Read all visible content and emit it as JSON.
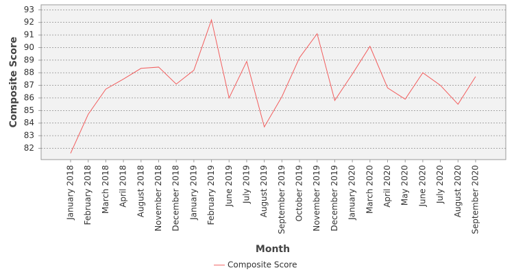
{
  "chart_data": {
    "type": "line",
    "x_label": "Month",
    "y_label": "Composite Score",
    "categories": [
      "January 2018",
      "February 2018",
      "March 2018",
      "April 2018",
      "August 2018",
      "November 2018",
      "December 2018",
      "January 2019",
      "February 2019",
      "June 2019",
      "July 2019",
      "August 2019",
      "September 2019",
      "October 2019",
      "November 2019",
      "December 2019",
      "January 2020",
      "March 2020",
      "April 2020",
      "May 2020",
      "June 2020",
      "July 2020",
      "August 2020",
      "September 2020"
    ],
    "series": [
      {
        "name": "Composite Score",
        "color": "#f25c5c",
        "values": [
          81.6,
          84.7,
          86.7,
          87.5,
          88.35,
          88.45,
          87.1,
          88.2,
          92.2,
          86.0,
          88.9,
          83.7,
          86.1,
          89.2,
          91.1,
          85.8,
          87.9,
          90.1,
          86.8,
          85.9,
          88.0,
          87.0,
          85.5,
          87.7
        ]
      }
    ],
    "ylim": [
      81.1,
      93.4
    ],
    "yticks": [
      82,
      83,
      84,
      85,
      86,
      87,
      88,
      89,
      90,
      91,
      92,
      93
    ],
    "grid": true
  }
}
